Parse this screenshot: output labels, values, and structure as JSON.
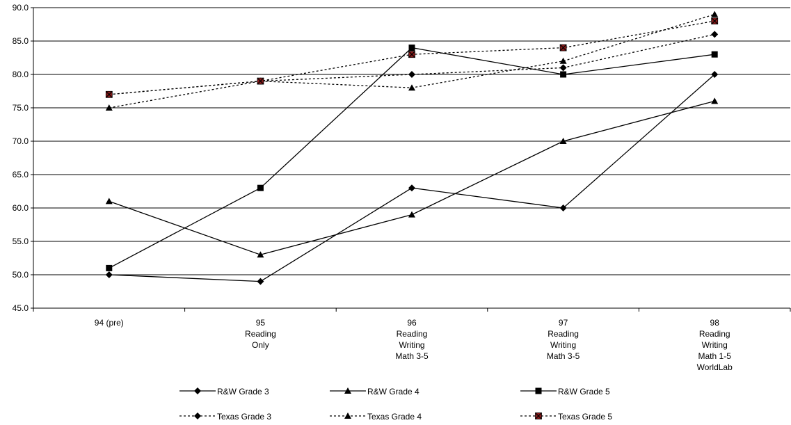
{
  "chart_data": {
    "type": "line",
    "title": "",
    "xlabel": "",
    "ylabel": "",
    "ylim": [
      45.0,
      90.0
    ],
    "yticks": [
      "45.0",
      "50.0",
      "55.0",
      "60.0",
      "65.0",
      "70.0",
      "75.0",
      "80.0",
      "85.0",
      "90.0"
    ],
    "grid": "horizontal",
    "legend_position": "bottom",
    "categories": [
      [
        "94 (pre)"
      ],
      [
        "95",
        "Reading",
        "Only"
      ],
      [
        "96",
        "Reading",
        "Writing",
        "Math 3-5"
      ],
      [
        "97",
        "Reading",
        "Writing",
        "Math 3-5"
      ],
      [
        "98",
        "Reading",
        "Writing",
        "Math 1-5",
        "WorldLab"
      ]
    ],
    "series": [
      {
        "name": "R&W Grade 3",
        "values": [
          50,
          49,
          63,
          60,
          80
        ],
        "marker": "diamond",
        "line": "solid",
        "color": "#000000"
      },
      {
        "name": "R&W Grade 4",
        "values": [
          61,
          53,
          59,
          70,
          76
        ],
        "marker": "triangle",
        "line": "solid",
        "color": "#000000"
      },
      {
        "name": "R&W Grade 5",
        "values": [
          51,
          63,
          84,
          80,
          83
        ],
        "marker": "square",
        "line": "solid",
        "color": "#000000"
      },
      {
        "name": "Texas Grade 3",
        "values": [
          77,
          79,
          80,
          81,
          86
        ],
        "marker": "diamond",
        "line": "dashed",
        "color": "#000000"
      },
      {
        "name": "Texas Grade 4",
        "values": [
          75,
          79,
          78,
          82,
          89
        ],
        "marker": "triangle",
        "line": "dashed",
        "color": "#000000"
      },
      {
        "name": "Texas Grade 5",
        "values": [
          77,
          79,
          83,
          84,
          88
        ],
        "marker": "square-x",
        "line": "dashed",
        "color": "#000000",
        "marker_fill": "#8b1a1a"
      }
    ]
  }
}
